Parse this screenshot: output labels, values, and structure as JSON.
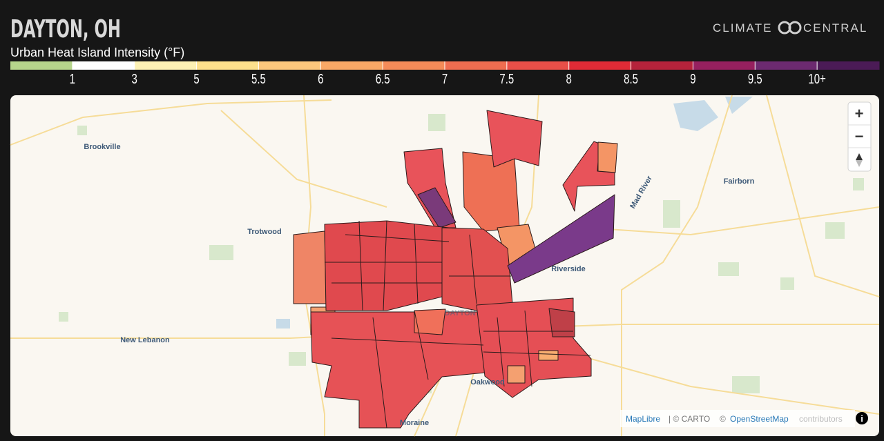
{
  "header": {
    "title": "DAYTON, OH",
    "subtitle": "Urban Heat Island Intensity (°F)",
    "logo_left": "CLIMATE",
    "logo_right": "CENTRAL"
  },
  "legend": {
    "colors": [
      "#b6d58c",
      "#ffffff",
      "#fdf1b4",
      "#fde08c",
      "#fcc77c",
      "#f8a866",
      "#f48b58",
      "#ef6d50",
      "#e94f48",
      "#df2b36",
      "#b5233b",
      "#96205f",
      "#6c2a70",
      "#4b1b56"
    ],
    "labels": [
      "1",
      "3",
      "5",
      "5.5",
      "6",
      "6.5",
      "7",
      "7.5",
      "8",
      "8.5",
      "9",
      "9.5",
      "10+"
    ]
  },
  "map": {
    "places": [
      "Brookville",
      "Trotwood",
      "Fairborn",
      "Riverside",
      "New Lebanon",
      "DAYTON",
      "Oakwood",
      "Moraine",
      "Mad River"
    ],
    "controls": {
      "zoom_in": "+",
      "zoom_out": "−"
    },
    "attribution": [
      "MapLibre",
      "| © CARTO",
      "©",
      "OpenStreetMap",
      "contributors"
    ]
  }
}
